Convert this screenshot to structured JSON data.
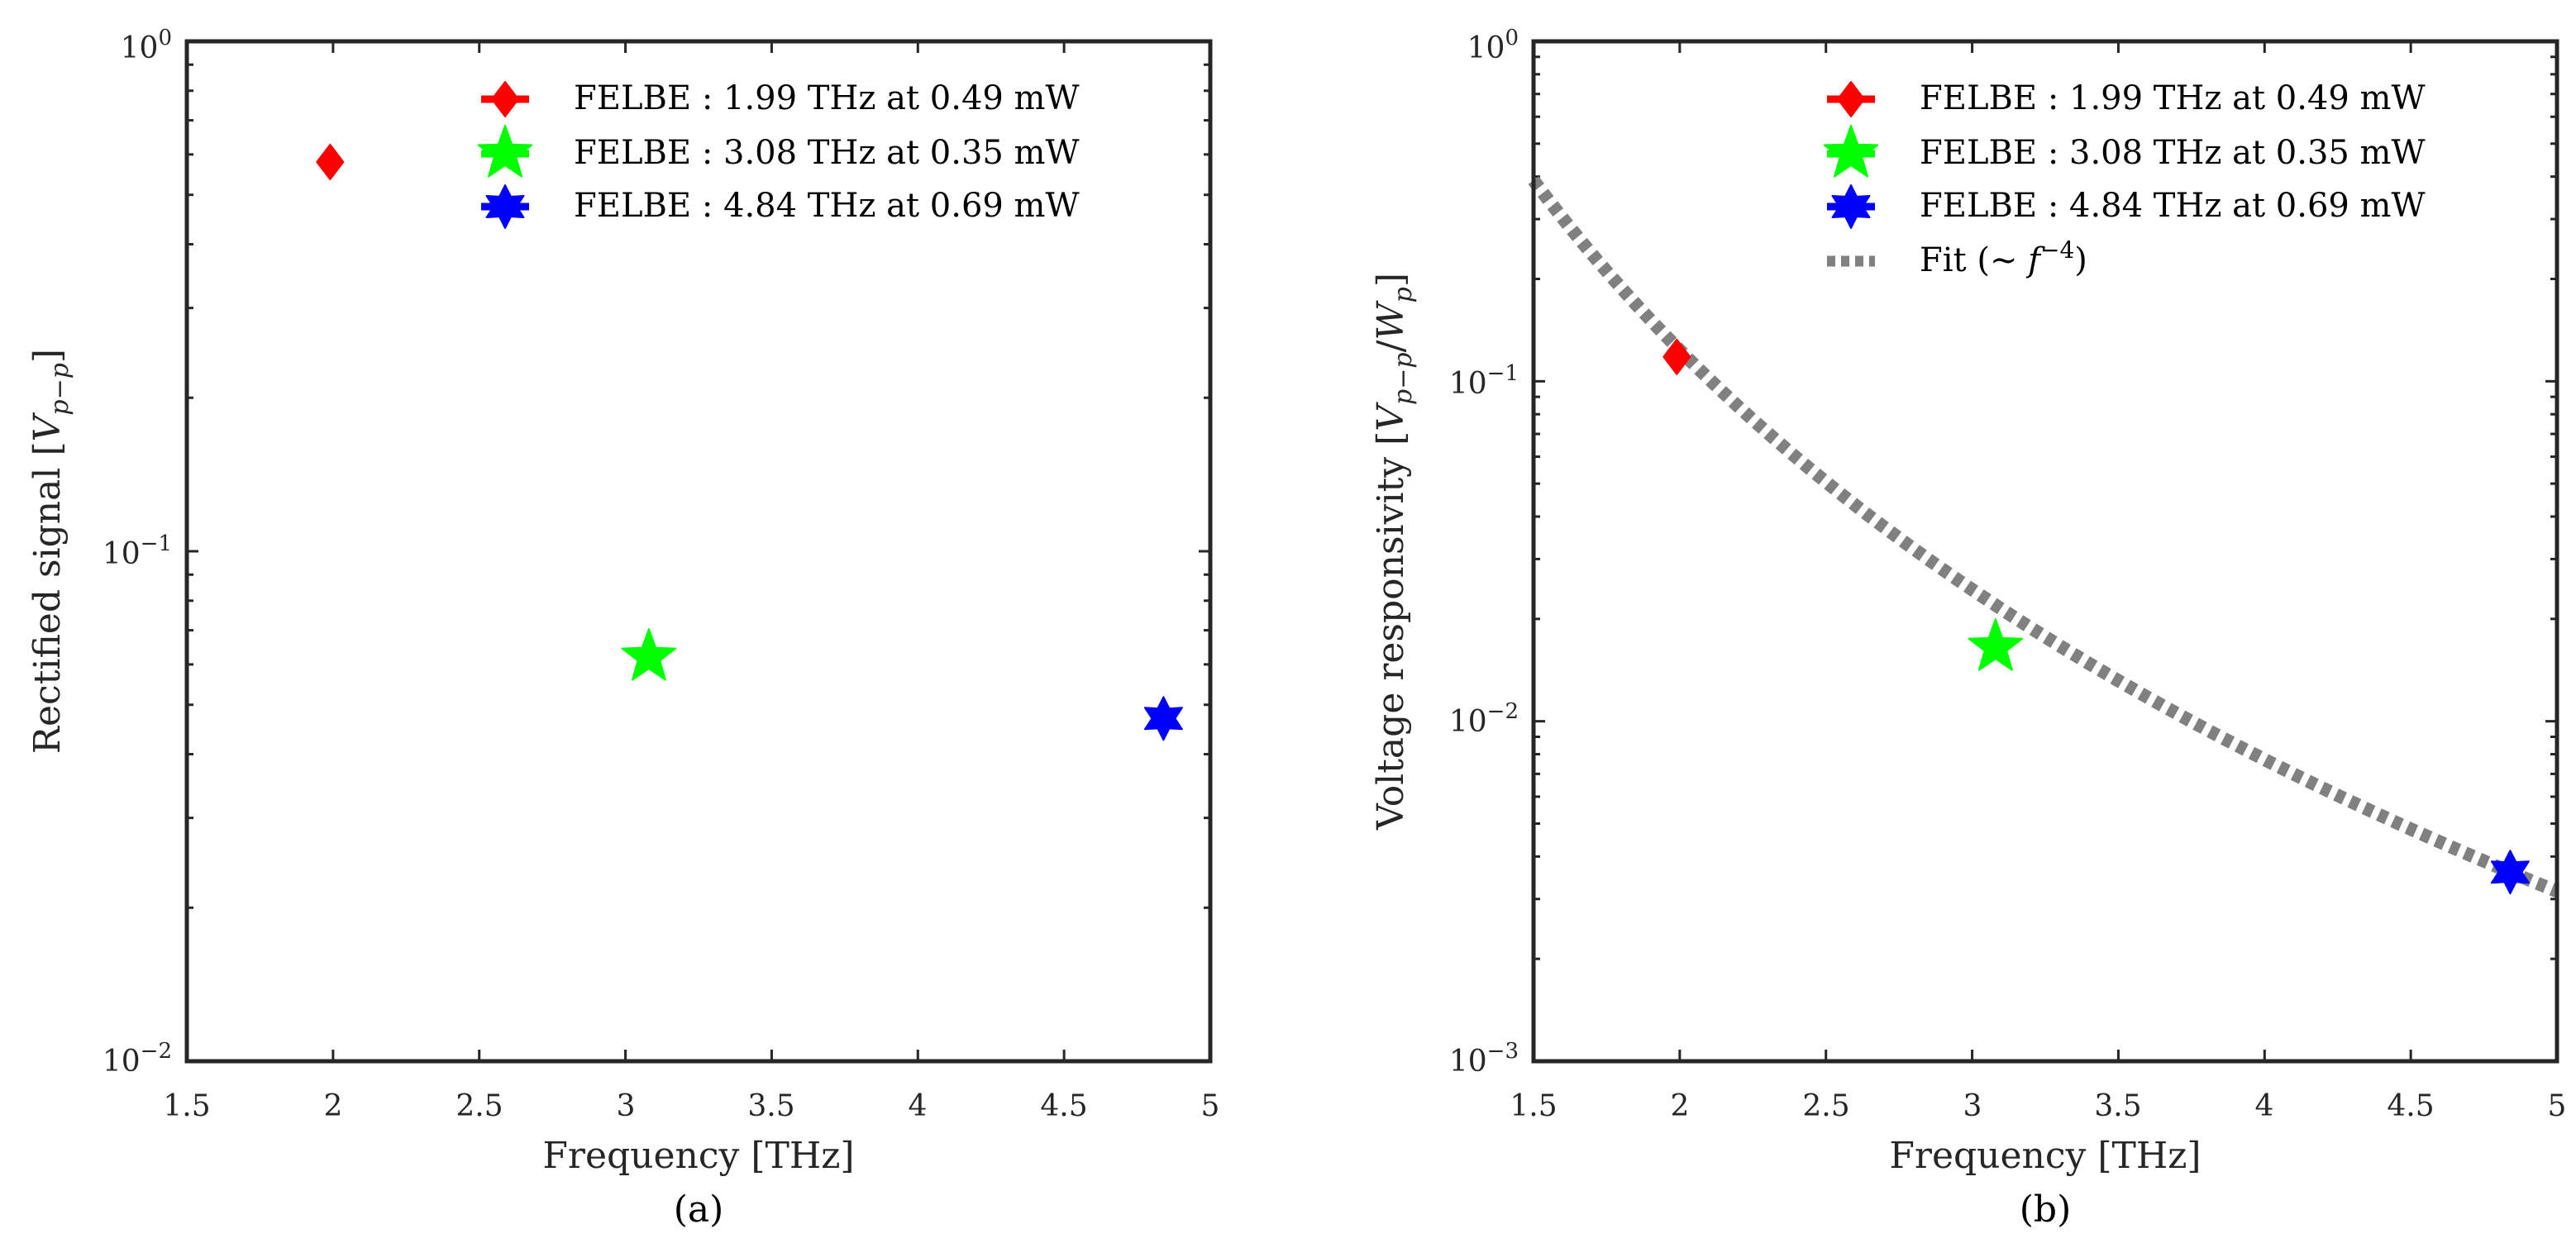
{
  "chart_data": [
    {
      "type": "scatter",
      "title": "",
      "caption": "(a)",
      "xlabel": "Frequency [THz]",
      "ylabel_text": "Rectified signal [",
      "ylabel_sym": "V",
      "ylabel_sub": "p−p",
      "ylabel_close": "]",
      "xlim": [
        1.5,
        5
      ],
      "ylim": [
        0.01,
        1
      ],
      "yscale": "log",
      "x_ticks": [
        "1.5",
        "2",
        "2.5",
        "3",
        "3.5",
        "4",
        "4.5",
        "5"
      ],
      "y_ticks": [
        {
          "base": "10",
          "exp": "−2"
        },
        {
          "base": "10",
          "exp": "−1"
        },
        {
          "base": "10",
          "exp": "0"
        }
      ],
      "legend_position": "top-right",
      "series": [
        {
          "name": "FELBE : 1.99 THz at 0.49 mW",
          "marker": "diamond",
          "color": "#ff0000",
          "x": [
            1.99
          ],
          "y": [
            0.58
          ]
        },
        {
          "name": "FELBE : 3.08 THz at 0.35 mW",
          "marker": "pentagram",
          "color": "#00ff00",
          "x": [
            3.08
          ],
          "y": [
            0.062
          ]
        },
        {
          "name": "FELBE : 4.84 THz at 0.69 mW",
          "marker": "hexagram",
          "color": "#0000ff",
          "x": [
            4.84
          ],
          "y": [
            0.047
          ]
        }
      ]
    },
    {
      "type": "scatter",
      "title": "",
      "caption": "(b)",
      "xlabel": "Frequency [THz]",
      "ylabel_text": "Voltage responsivity [",
      "ylabel_sym": "V",
      "ylabel_sub": "p−p",
      "ylabel_mid": "/",
      "ylabel_sym2": "W",
      "ylabel_sub2": "p",
      "ylabel_close": "]",
      "xlim": [
        1.5,
        5
      ],
      "ylim": [
        0.001,
        1
      ],
      "yscale": "log",
      "x_ticks": [
        "1.5",
        "2",
        "2.5",
        "3",
        "3.5",
        "4",
        "4.5",
        "5"
      ],
      "y_ticks": [
        {
          "base": "10",
          "exp": "−3"
        },
        {
          "base": "10",
          "exp": "−2"
        },
        {
          "base": "10",
          "exp": "−1"
        },
        {
          "base": "10",
          "exp": "0"
        }
      ],
      "legend_position": "top-right",
      "series": [
        {
          "name": "FELBE : 1.99 THz at 0.49 mW",
          "marker": "diamond",
          "color": "#ff0000",
          "x": [
            1.99
          ],
          "y": [
            0.118
          ]
        },
        {
          "name": "FELBE : 3.08 THz at 0.35 mW",
          "marker": "pentagram",
          "color": "#00ff00",
          "x": [
            3.08
          ],
          "y": [
            0.0165
          ]
        },
        {
          "name": "FELBE : 4.84 THz at 0.69 mW",
          "marker": "hexagram",
          "color": "#0000ff",
          "x": [
            4.84
          ],
          "y": [
            0.0036
          ]
        }
      ],
      "fit": {
        "label_prefix": "Fit (∼ ",
        "label_sym": "f",
        "label_exp": "−4",
        "label_suffix": ")",
        "exponent": -4,
        "anchor_x": 4.84,
        "anchor_y": 0.0036,
        "color": "#808080",
        "style": "dotted"
      }
    }
  ]
}
